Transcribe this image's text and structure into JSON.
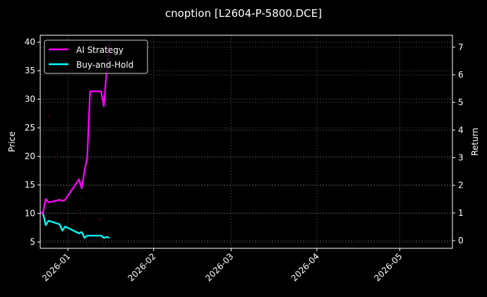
{
  "chart_data": {
    "type": "line",
    "title": "cnoption [L2604-P-5800.DCE]",
    "xlabel": "",
    "ylabel_left": "Price",
    "ylabel_right": "Return",
    "x_range": [
      "2025-12-22",
      "2026-05-20"
    ],
    "ylim_left": [
      3.9,
      41.2
    ],
    "ylim_right": [
      -0.28,
      7.43
    ],
    "grid": true,
    "legend_placement": "top-left",
    "x_ticks": [
      "2026-01-01",
      "2026-02-01",
      "2026-03-01",
      "2026-04-01",
      "2026-05-01"
    ],
    "x_tick_labels": [
      "2026-01",
      "2026-02",
      "2026-03",
      "2026-04",
      "2026-05"
    ],
    "y_ticks_left": [
      5,
      10,
      15,
      20,
      25,
      30,
      35,
      40
    ],
    "y_ticks_right": [
      0,
      1,
      2,
      3,
      4,
      5,
      6,
      7
    ],
    "dates": [
      "2025-12-22",
      "2025-12-23",
      "2025-12-24",
      "2025-12-25",
      "2025-12-28",
      "2025-12-29",
      "2025-12-30",
      "2025-12-31",
      "2026-01-05",
      "2026-01-06",
      "2026-01-07",
      "2026-01-08",
      "2026-01-09",
      "2026-01-12",
      "2026-01-13",
      "2026-01-14",
      "2026-01-15",
      "2026-01-16"
    ],
    "series": [
      {
        "name": "AI Strategy",
        "axis": "right",
        "color": "#ff00ff",
        "values": [
          1.0,
          1.0,
          1.51,
          1.38,
          1.45,
          1.48,
          1.43,
          1.48,
          2.22,
          1.89,
          2.51,
          3.02,
          5.4,
          5.4,
          5.4,
          4.86,
          6.16,
          7.1
        ]
      },
      {
        "name": "Buy-and-Hold",
        "axis": "right",
        "color": "#00ffff",
        "values": [
          1.0,
          1.0,
          0.56,
          0.72,
          0.62,
          0.59,
          0.36,
          0.51,
          0.26,
          0.31,
          0.1,
          0.18,
          0.18,
          0.18,
          0.18,
          0.1,
          0.13,
          0.1
        ]
      }
    ],
    "price_points": {
      "axis": "left",
      "color": "#5a0000",
      "points": [
        {
          "date": "2025-12-24",
          "value": 22.4
        },
        {
          "date": "2025-12-25",
          "value": 27.1
        },
        {
          "date": "2025-12-28",
          "value": 20.4
        },
        {
          "date": "2026-01-05",
          "value": 10.5
        },
        {
          "date": "2026-01-06",
          "value": 12.5
        },
        {
          "date": "2026-01-07",
          "value": 9.0
        },
        {
          "date": "2026-01-08",
          "value": 4.5
        },
        {
          "date": "2026-01-12",
          "value": 9.0
        },
        {
          "date": "2026-01-13",
          "value": 9.0
        },
        {
          "date": "2026-01-14",
          "value": 4.5
        }
      ]
    }
  }
}
